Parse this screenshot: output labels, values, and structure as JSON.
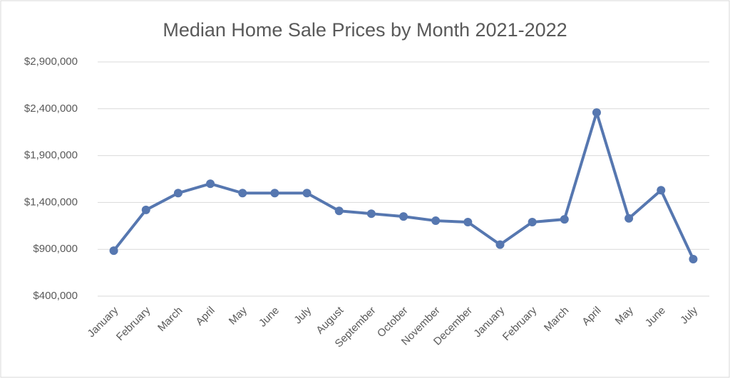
{
  "chart_data": {
    "type": "line",
    "title": "Median Home Sale Prices by Month 2021-2022",
    "categories": [
      "January",
      "February",
      "March",
      "April",
      "May",
      "June",
      "July",
      "August",
      "September",
      "October",
      "November",
      "December",
      "January",
      "February",
      "March",
      "April",
      "May",
      "June",
      "July"
    ],
    "series": [
      {
        "name": "Median Home Sale Price",
        "color": "#5677b0",
        "values": [
          885000,
          1320000,
          1500000,
          1600000,
          1500000,
          1500000,
          1500000,
          1310000,
          1280000,
          1250000,
          1205000,
          1190000,
          950000,
          1190000,
          1220000,
          2360000,
          1230000,
          1530000,
          795000
        ]
      }
    ],
    "ylim": [
      400000,
      2900000
    ],
    "yticks": [
      {
        "value": 400000,
        "label": "$400,000"
      },
      {
        "value": 900000,
        "label": "$900,000"
      },
      {
        "value": 1400000,
        "label": "$1,400,000"
      },
      {
        "value": 1900000,
        "label": "$1,900,000"
      },
      {
        "value": 2400000,
        "label": "$2,400,000"
      },
      {
        "value": 2900000,
        "label": "$2,900,000"
      }
    ],
    "grid": true
  }
}
